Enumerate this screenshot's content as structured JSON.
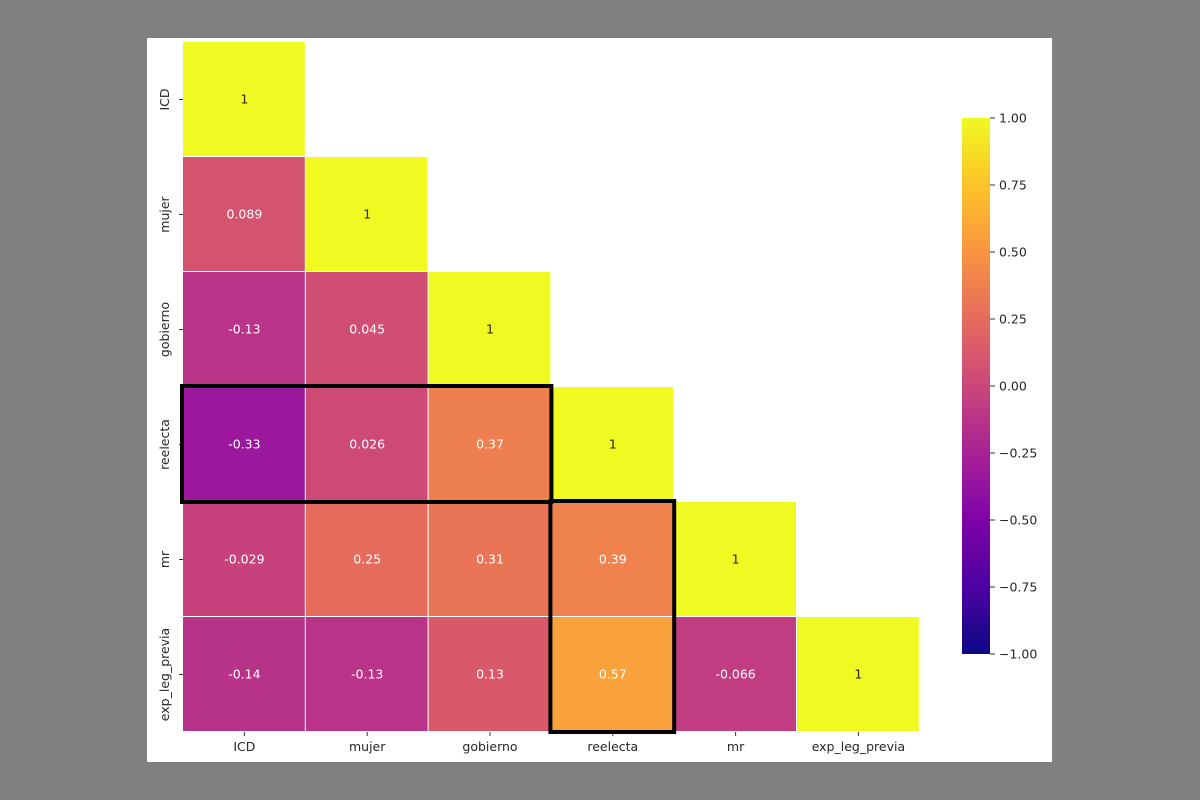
{
  "chart_data": {
    "type": "heatmap",
    "title": "",
    "xlabel": "",
    "ylabel": "",
    "variables": [
      "ICD",
      "mujer",
      "gobierno",
      "reelecta",
      "mr",
      "exp_leg_previa"
    ],
    "matrix": [
      [
        1
      ],
      [
        0.089,
        1
      ],
      [
        -0.13,
        0.045,
        1
      ],
      [
        -0.33,
        0.026,
        0.37,
        1
      ],
      [
        -0.029,
        0.25,
        0.31,
        0.39,
        1
      ],
      [
        -0.14,
        -0.13,
        0.13,
        0.57,
        -0.066,
        1
      ]
    ],
    "labels": [
      [
        "1"
      ],
      [
        "0.089",
        "1"
      ],
      [
        "-0.13",
        "0.045",
        "1"
      ],
      [
        "-0.33",
        "0.026",
        "0.37",
        "1"
      ],
      [
        "-0.029",
        "0.25",
        "0.31",
        "0.39",
        "1"
      ],
      [
        "-0.14",
        "-0.13",
        "0.13",
        "0.57",
        "-0.066",
        "1"
      ]
    ],
    "mask": "lower-triangle",
    "colormap": "plasma",
    "vmin": -1,
    "vmax": 1,
    "colorbar_ticks": [
      "1.00",
      "0.75",
      "0.50",
      "0.25",
      "0.00",
      "−0.25",
      "−0.50",
      "−0.75",
      "−1.00"
    ],
    "highlight_boxes": [
      {
        "row": "reelecta",
        "cols": [
          "ICD",
          "mujer",
          "gobierno"
        ]
      },
      {
        "col": "reelecta",
        "rows": [
          "mr",
          "exp_leg_previa"
        ]
      }
    ]
  }
}
